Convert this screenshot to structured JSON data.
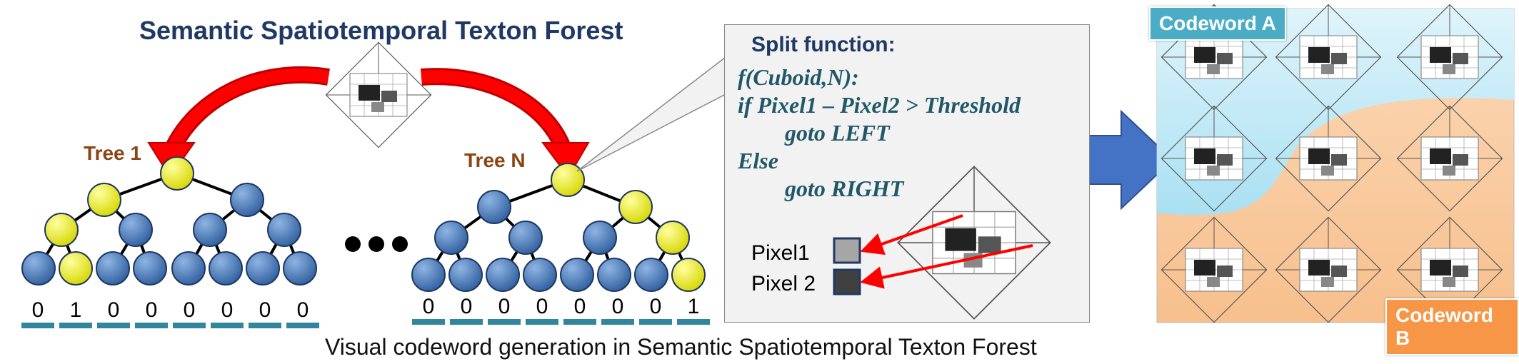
{
  "title": "Semantic Spatiotemporal Texton Forest",
  "tree1_label": "Tree 1",
  "treeN_label": "Tree N",
  "split": {
    "heading": "Split function:",
    "code_lines": [
      "f(Cuboid,N):",
      "if Pixel1 – Pixel2 > Threshold",
      "goto LEFT",
      "Else",
      "goto RIGHT"
    ],
    "pixel1": "Pixel1",
    "pixel2": "Pixel 2"
  },
  "tree1_bits": [
    "0",
    "1",
    "0",
    "0",
    "0",
    "0",
    "0",
    "0"
  ],
  "treeN_bits": [
    "0",
    "0",
    "0",
    "0",
    "0",
    "0",
    "0",
    "1"
  ],
  "codeword_a": "Codeword A",
  "codeword_b": "Codeword B",
  "caption": "Visual codeword generation in Semantic Spatiotemporal Texton Forest",
  "colors": {
    "node_blue": "#4f81bd",
    "node_yellow": "#ffff00",
    "arrow_red": "#ff0000",
    "big_arrow": "#4472c4",
    "region_a": "#bfe9f5",
    "region_b": "#fad3ad",
    "bit_bar": "#31859c"
  }
}
